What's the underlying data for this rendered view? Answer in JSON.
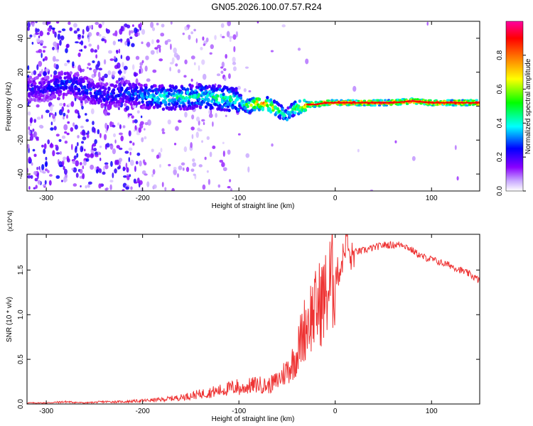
{
  "page": {
    "title": "GN05.2026.100.07.57.R24"
  },
  "chart_data": [
    {
      "type": "heatmap",
      "title": "GN05.2026.100.07.57.R24",
      "xlabel": "Height of straight line (km)",
      "ylabel": "Frequency (Hz)",
      "xlim": [
        -320,
        150
      ],
      "ylim": [
        -50,
        50
      ],
      "xticks": [
        -300,
        -200,
        -100,
        0,
        100
      ],
      "yticks": [
        -40,
        -20,
        0,
        20,
        40
      ],
      "colorbar": {
        "label": "Normalized spectral amplitude",
        "range": [
          0,
          1
        ],
        "ticks": [
          0.0,
          0.2,
          0.4,
          0.6,
          0.8
        ],
        "colormap": [
          "#ffffff",
          "#c8a8ff",
          "#8a00ff",
          "#0000ff",
          "#00ffff",
          "#00ff00",
          "#ffff00",
          "#ff8000",
          "#ff0000",
          "#ff00a0"
        ]
      },
      "ridge": {
        "x": [
          -300,
          -280,
          -260,
          -240,
          -220,
          -200,
          -180,
          -160,
          -140,
          -120,
          -100,
          -90,
          -80,
          -70,
          -60,
          -55,
          -50,
          -45,
          -40,
          -30,
          -20,
          -10,
          0,
          20,
          40,
          60,
          80,
          100,
          120,
          150
        ],
        "y": [
          10,
          14,
          10,
          6,
          8,
          6,
          5,
          5,
          6,
          5,
          3,
          0,
          2,
          1,
          -2,
          -4,
          -6,
          -2,
          -1,
          1,
          1,
          2,
          2,
          2,
          2,
          2,
          3,
          2,
          2,
          2
        ],
        "peak_amplitude": [
          0.25,
          0.3,
          0.3,
          0.3,
          0.3,
          0.35,
          0.45,
          0.45,
          0.45,
          0.5,
          0.5,
          0.6,
          0.8,
          0.8,
          0.6,
          0.5,
          0.45,
          0.5,
          0.6,
          0.9,
          0.95,
          1.0,
          1.0,
          1.0,
          1.0,
          1.0,
          1.0,
          1.0,
          1.0,
          1.0
        ]
      }
    },
    {
      "type": "line",
      "title": "",
      "xlabel": "Height of straight line (km)",
      "ylabel": "SNR (10 * v/v)",
      "ylabel_scale": "(x10^4)",
      "xlim": [
        -320,
        150
      ],
      "ylim": [
        0,
        1.9
      ],
      "xticks": [
        -300,
        -200,
        -100,
        0,
        100
      ],
      "yticks": [
        0.0,
        0.5,
        1.0,
        1.5
      ],
      "color": "#ee3333",
      "series": [
        {
          "x": [
            -320,
            -300,
            -280,
            -260,
            -240,
            -220,
            -200,
            -180,
            -160,
            -140,
            -120,
            -100,
            -90,
            -80,
            -70,
            -60,
            -50,
            -45,
            -40,
            -35,
            -30,
            -25,
            -20,
            -15,
            -10,
            -5,
            0,
            5,
            10,
            12,
            15,
            20,
            30,
            40,
            50,
            60,
            70,
            80,
            90,
            100,
            110,
            120,
            130,
            140,
            150
          ],
          "values": [
            0.01,
            0.01,
            0.02,
            0.01,
            0.02,
            0.02,
            0.03,
            0.04,
            0.06,
            0.09,
            0.12,
            0.16,
            0.2,
            0.22,
            0.2,
            0.26,
            0.38,
            0.45,
            0.55,
            0.75,
            0.9,
            1.0,
            1.05,
            1.15,
            1.2,
            1.35,
            1.45,
            1.5,
            1.75,
            1.92,
            1.6,
            1.7,
            1.72,
            1.75,
            1.78,
            1.78,
            1.79,
            1.72,
            1.65,
            1.62,
            1.58,
            1.55,
            1.5,
            1.45,
            1.38
          ]
        }
      ]
    }
  ]
}
